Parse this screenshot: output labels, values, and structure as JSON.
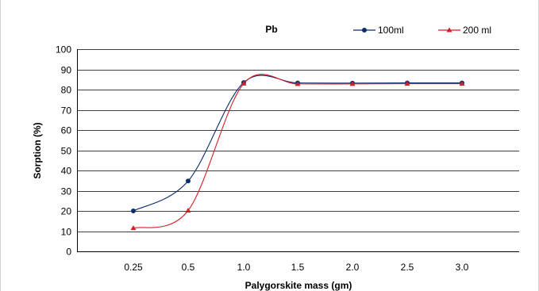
{
  "chart_data": {
    "type": "line",
    "title": "Pb",
    "xlabel": "Palygorskite mass (gm)",
    "ylabel": "Sorption (%)",
    "categories": [
      "0.25",
      "0.5",
      "1.0",
      "1.5",
      "2.0",
      "2.5",
      "3.0"
    ],
    "ylim": [
      0,
      100
    ],
    "yticks": [
      0,
      10,
      20,
      30,
      40,
      50,
      60,
      70,
      80,
      90,
      100
    ],
    "grid": "horizontal",
    "legend_position": "top-right",
    "series": [
      {
        "name": "100ml",
        "values": [
          20,
          34.8,
          83.5,
          83.3,
          83.2,
          83.3,
          83.3
        ],
        "color": "#0b2d6e",
        "marker": "circle"
      },
      {
        "name": "200 ml",
        "values": [
          11.5,
          20.2,
          83.0,
          82.8,
          82.8,
          82.9,
          82.9
        ],
        "color": "#d31f26",
        "marker": "triangle"
      }
    ]
  }
}
